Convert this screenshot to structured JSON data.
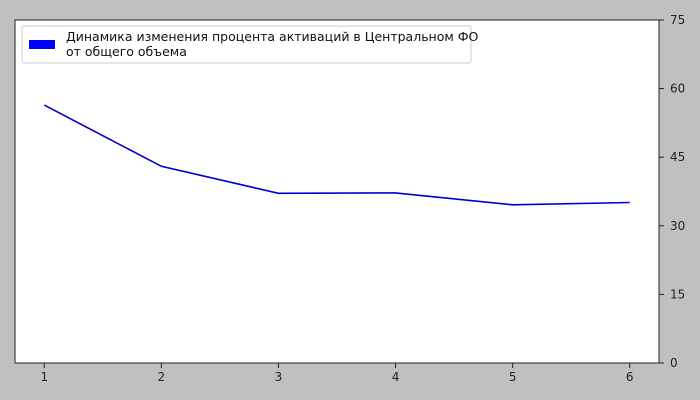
{
  "chart_data": {
    "type": "line",
    "x": [
      1,
      2,
      3,
      4,
      5,
      6
    ],
    "series": [
      {
        "name": "Динамика изменения процента активаций в Центральном ФО от общего объема",
        "name_lines": [
          "Динамика изменения процента активаций в Центральном ФО",
          "от общего объема"
        ],
        "values": [
          56.4,
          43.0,
          37.1,
          37.2,
          34.6,
          35.1
        ],
        "color": "#0000cc"
      }
    ],
    "xticks": [
      "1",
      "2",
      "3",
      "4",
      "5",
      "6"
    ],
    "yticks": [
      "0",
      "15",
      "30",
      "45",
      "60",
      "75"
    ],
    "ytick_values": [
      0,
      15,
      30,
      45,
      60,
      75
    ],
    "xlim": [
      0.75,
      6.25
    ],
    "ylim": [
      0,
      75
    ],
    "y_axis_side": "right",
    "legend_position": "top-left",
    "legend_patch_color": "#0000ff",
    "grid": false,
    "title": "",
    "xlabel": "",
    "ylabel": ""
  }
}
